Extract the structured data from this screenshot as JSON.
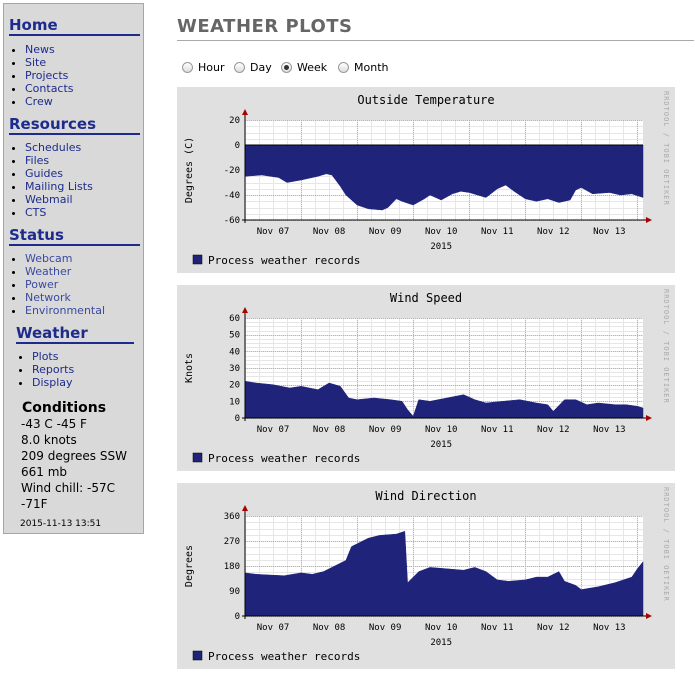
{
  "sidebar": {
    "home": {
      "title": "Home",
      "items": [
        "News",
        "Site",
        "Projects",
        "Contacts",
        "Crew"
      ]
    },
    "resources": {
      "title": "Resources",
      "items": [
        "Schedules",
        "Files",
        "Guides",
        "Mailing Lists",
        "Webmail",
        "CTS"
      ]
    },
    "status": {
      "title": "Status",
      "items": [
        "Webcam",
        "Weather",
        "Power",
        "Network",
        "Environmental"
      ]
    },
    "weather": {
      "title": "Weather",
      "items": [
        "Plots",
        "Reports",
        "Display"
      ]
    },
    "conditions": {
      "title": "Conditions",
      "lines": [
        "-43 C -45 F",
        "8.0 knots",
        "209 degrees SSW",
        "661 mb",
        "Wind chill: -57C",
        "-71F"
      ],
      "timestamp": "2015-11-13 13:51"
    }
  },
  "main": {
    "title": "WEATHER PLOTS",
    "range_options": [
      "Hour",
      "Day",
      "Week",
      "Month"
    ],
    "range_selected": "Week"
  },
  "colors": {
    "nav_link": "#1e2b8c",
    "fill": "#1f237a",
    "panel_bg": "#e0e0e0"
  },
  "chart_data": [
    {
      "type": "area",
      "title": "Outside Temperature",
      "ylabel": "Degrees (C)",
      "xlabel": "2015",
      "ylim": [
        -60,
        20
      ],
      "yticks": [
        20,
        0,
        -20,
        -40,
        -60
      ],
      "xticks": [
        "Nov 07",
        "Nov 08",
        "Nov 09",
        "Nov 10",
        "Nov 11",
        "Nov 12",
        "Nov 13"
      ],
      "baseline": 0,
      "x": [
        6.0,
        6.3,
        6.6,
        6.75,
        7.0,
        7.3,
        7.45,
        7.55,
        7.7,
        7.8,
        8.0,
        8.2,
        8.45,
        8.55,
        8.7,
        8.8,
        9.0,
        9.2,
        9.3,
        9.5,
        9.7,
        9.85,
        10.0,
        10.3,
        10.5,
        10.65,
        10.8,
        11.0,
        11.2,
        11.4,
        11.6,
        11.8,
        11.9,
        12.0,
        12.2,
        12.5,
        12.7,
        12.9,
        13.1
      ],
      "series": [
        {
          "name": "Process weather records",
          "values": [
            -25,
            -24,
            -26,
            -30,
            -28,
            -25,
            -23,
            -24,
            -33,
            -40,
            -48,
            -51,
            -52,
            -50,
            -43,
            -45,
            -48,
            -43,
            -40,
            -44,
            -39,
            -37,
            -38,
            -42,
            -35,
            -32,
            -37,
            -43,
            -45,
            -43,
            -46,
            -44,
            -36,
            -34,
            -39,
            -38,
            -40,
            -39,
            -42
          ]
        }
      ],
      "legend": "Process weather records",
      "side_label": "RRDTOOL / TOBI OETIKER"
    },
    {
      "type": "area",
      "title": "Wind Speed",
      "ylabel": "Knots",
      "xlabel": "2015",
      "ylim": [
        0,
        60
      ],
      "yticks": [
        60,
        50,
        40,
        30,
        20,
        10,
        0
      ],
      "xticks": [
        "Nov 07",
        "Nov 08",
        "Nov 09",
        "Nov 10",
        "Nov 11",
        "Nov 12",
        "Nov 13"
      ],
      "baseline": 0,
      "x": [
        6.0,
        6.2,
        6.5,
        6.8,
        7.0,
        7.3,
        7.5,
        7.7,
        7.85,
        8.0,
        8.3,
        8.6,
        8.8,
        8.9,
        9.0,
        9.1,
        9.3,
        9.6,
        9.9,
        10.1,
        10.3,
        10.6,
        10.9,
        11.2,
        11.4,
        11.5,
        11.7,
        11.9,
        12.1,
        12.3,
        12.6,
        12.8,
        13.0,
        13.1
      ],
      "series": [
        {
          "name": "Process weather records",
          "values": [
            22,
            21,
            20,
            18,
            19,
            17,
            21,
            19,
            12,
            11,
            12,
            11,
            10,
            5,
            1,
            11,
            10,
            12,
            14,
            11,
            9,
            10,
            11,
            9,
            8,
            4,
            11,
            11,
            8,
            9,
            8,
            8,
            7,
            6
          ]
        }
      ],
      "legend": "Process weather records",
      "side_label": "RRDTOOL / TOBI OETIKER"
    },
    {
      "type": "area",
      "title": "Wind Direction",
      "ylabel": "Degrees",
      "xlabel": "2015",
      "ylim": [
        0,
        360
      ],
      "yticks": [
        360,
        270,
        180,
        90,
        0
      ],
      "xticks": [
        "Nov 07",
        "Nov 08",
        "Nov 09",
        "Nov 10",
        "Nov 11",
        "Nov 12",
        "Nov 13"
      ],
      "baseline": 0,
      "x": [
        6.0,
        6.2,
        6.4,
        6.7,
        7.0,
        7.2,
        7.4,
        7.6,
        7.8,
        7.9,
        8.2,
        8.4,
        8.7,
        8.85,
        8.9,
        9.1,
        9.3,
        9.6,
        9.9,
        10.1,
        10.3,
        10.5,
        10.7,
        11.0,
        11.2,
        11.4,
        11.6,
        11.7,
        11.9,
        12.0,
        12.3,
        12.6,
        12.9,
        13.0,
        13.1
      ],
      "series": [
        {
          "name": "Process weather records",
          "values": [
            155,
            150,
            148,
            145,
            155,
            150,
            160,
            180,
            200,
            250,
            280,
            290,
            295,
            305,
            120,
            160,
            175,
            170,
            165,
            175,
            160,
            130,
            125,
            130,
            140,
            140,
            160,
            125,
            110,
            95,
            105,
            120,
            140,
            170,
            195
          ]
        }
      ],
      "legend": "Process weather records",
      "side_label": "RRDTOOL / TOBI OETIKER"
    }
  ]
}
